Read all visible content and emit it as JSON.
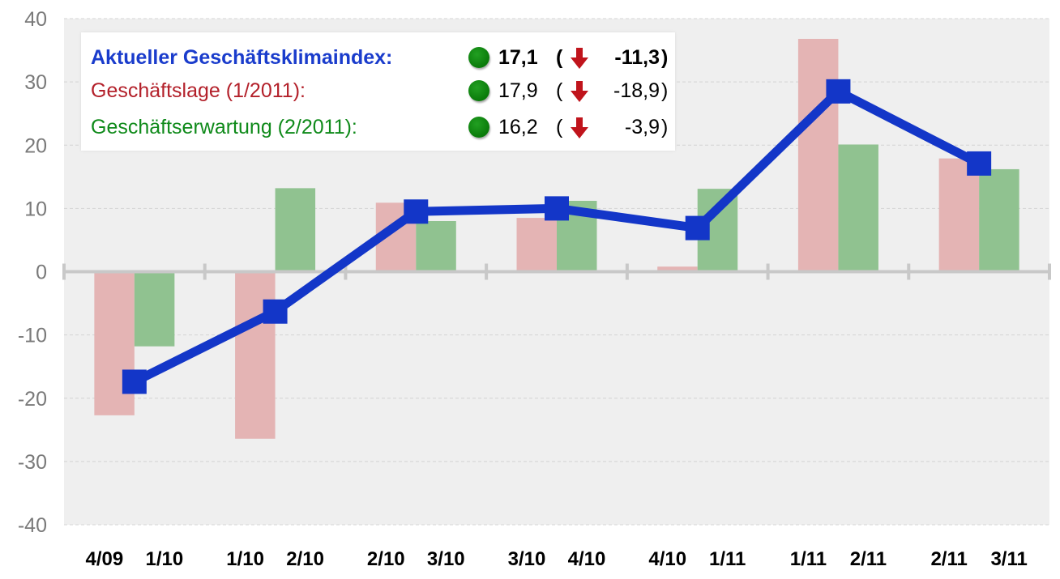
{
  "legend": {
    "rows": [
      {
        "label": "Aktueller Geschäftsklimaindex:",
        "value": "17,1",
        "paren_open": "(",
        "delta": "-11,3",
        "paren_close": ")",
        "color": "#1a3ccc",
        "bold": true
      },
      {
        "label": "Geschäftslage (1/2011):",
        "value": "17,9",
        "paren_open": "(",
        "delta": "-18,9",
        "paren_close": ")",
        "color": "#b3202a",
        "bold": false
      },
      {
        "label": "Geschäftserwartung (2/2011):",
        "value": "16,2",
        "paren_open": "(",
        "delta": "-3,9",
        "paren_close": ")",
        "color": "#0f8a1a",
        "bold": false
      }
    ],
    "status_icon": "green-circle-icon",
    "trend_icon": "red-down-arrow-icon"
  },
  "chart_data": {
    "type": "bar",
    "ylim": [
      -40,
      40
    ],
    "yticks": [
      40,
      30,
      20,
      10,
      0,
      -10,
      -20,
      -30,
      -40
    ],
    "grid": true,
    "categories": [
      {
        "left_label": "4/09",
        "right_label": "1/10"
      },
      {
        "left_label": "1/10",
        "right_label": "2/10"
      },
      {
        "left_label": "2/10",
        "right_label": "3/10"
      },
      {
        "left_label": "3/10",
        "right_label": "4/10"
      },
      {
        "left_label": "4/10",
        "right_label": "1/11"
      },
      {
        "left_label": "1/11",
        "right_label": "2/11"
      },
      {
        "left_label": "2/11",
        "right_label": "3/11"
      }
    ],
    "series": [
      {
        "kind": "bar",
        "color": "#e4b4b4",
        "values": [
          -22.7,
          -26.4,
          10.9,
          8.5,
          0.8,
          36.8,
          17.9
        ]
      },
      {
        "kind": "bar",
        "color": "#90c290",
        "values": [
          -11.8,
          13.2,
          8.0,
          11.2,
          13.1,
          20.1,
          16.2
        ]
      },
      {
        "kind": "line",
        "color": "#1336c8",
        "values": [
          -17.4,
          -6.3,
          9.5,
          10.0,
          6.9,
          28.5,
          17.1
        ]
      }
    ],
    "colors": {
      "plot_background": "#efefef",
      "gridline": "#d4d4d4",
      "zero_line": "#c8c8c8",
      "tick_label": "#7a7a7a",
      "category_label": "#000000"
    }
  }
}
